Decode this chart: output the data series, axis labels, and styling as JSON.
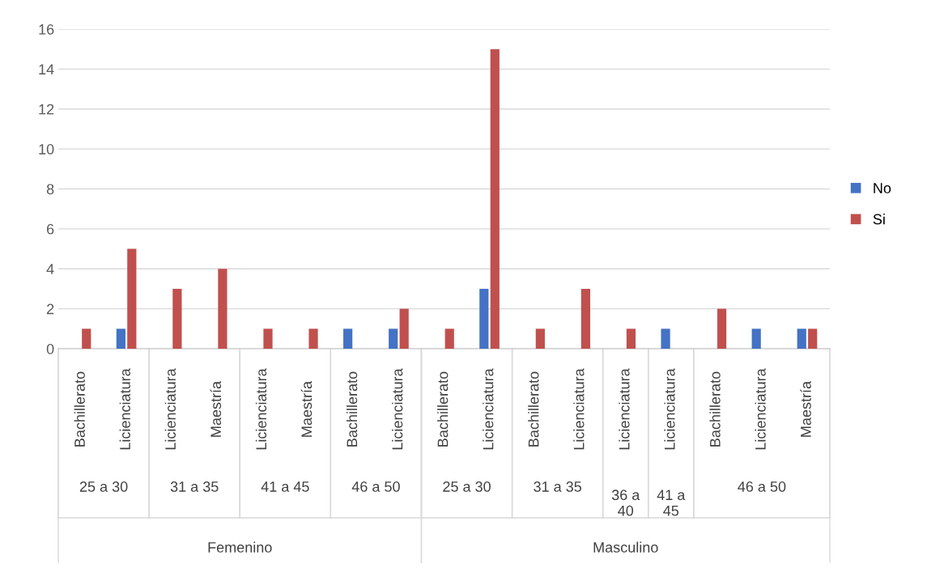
{
  "chart_data": {
    "type": "bar",
    "categories": [
      "Bachillerato",
      "Licienciatura",
      "Licienciatura",
      "Maestría",
      "Licienciatura",
      "Maestría",
      "Bachillerato",
      "Licienciatura",
      "Bachillerato",
      "Licienciatura",
      "Bachillerato",
      "Licienciatura",
      "Licienciatura",
      "Licienciatura",
      "Bachillerato",
      "Licienciatura",
      "Maestría"
    ],
    "series": [
      {
        "name": "No",
        "color": "#4472c4",
        "values": [
          null,
          1,
          null,
          null,
          null,
          null,
          1,
          1,
          null,
          3,
          null,
          null,
          null,
          1,
          null,
          1,
          1
        ]
      },
      {
        "name": "Si",
        "color": "#c0504d",
        "values": [
          1,
          5,
          3,
          4,
          1,
          1,
          null,
          2,
          1,
          15,
          1,
          3,
          1,
          null,
          2,
          null,
          1
        ]
      }
    ],
    "annotations": [
      "25 a 30",
      "31 a 35",
      "41 a 45",
      "46 a 50",
      "25 a 30",
      "31 a 35",
      "36 a 40",
      "41 a 45",
      "46 a 50",
      "Femenino",
      "Masculino"
    ],
    "ylim": [
      0,
      16
    ],
    "yticks": [
      0,
      2,
      4,
      6,
      8,
      10,
      12,
      14,
      16
    ],
    "grid": "y",
    "legend": "right"
  }
}
